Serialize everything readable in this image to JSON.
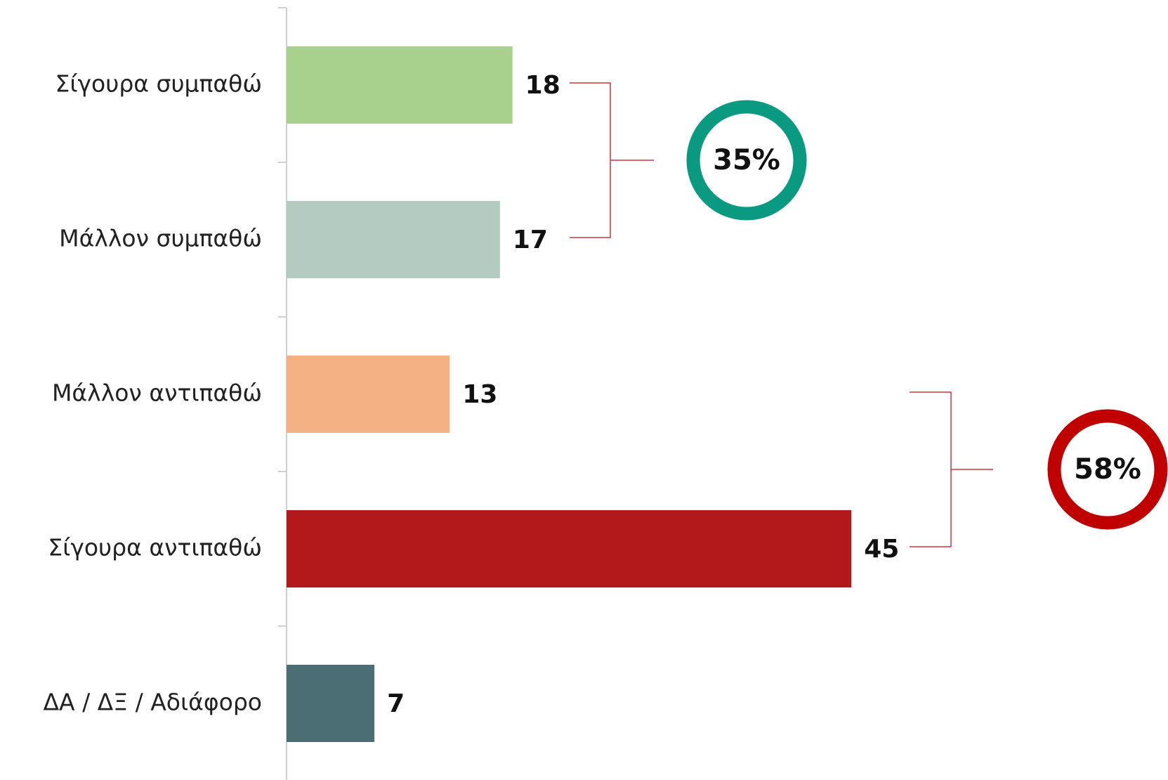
{
  "chart_data": {
    "type": "bar",
    "orientation": "horizontal",
    "categories": [
      "Σίγουρα συμπαθώ",
      "Μάλλον συμπαθώ",
      "Μάλλον αντιπαθώ",
      "Σίγουρα αντιπαθώ",
      "ΔΑ / ΔΞ / Αδιάφορο"
    ],
    "values": [
      18,
      17,
      13,
      45,
      7
    ],
    "colors": [
      "#a9d18e",
      "#b3cbc0",
      "#f4b183",
      "#b2191b",
      "#4a6e74"
    ],
    "xlim": [
      0,
      70
    ],
    "annotations": [
      {
        "value": 35,
        "label": "35%",
        "color": "#0a9a82"
      },
      {
        "value": 58,
        "label": "58%",
        "color": "#c00000"
      }
    ]
  }
}
